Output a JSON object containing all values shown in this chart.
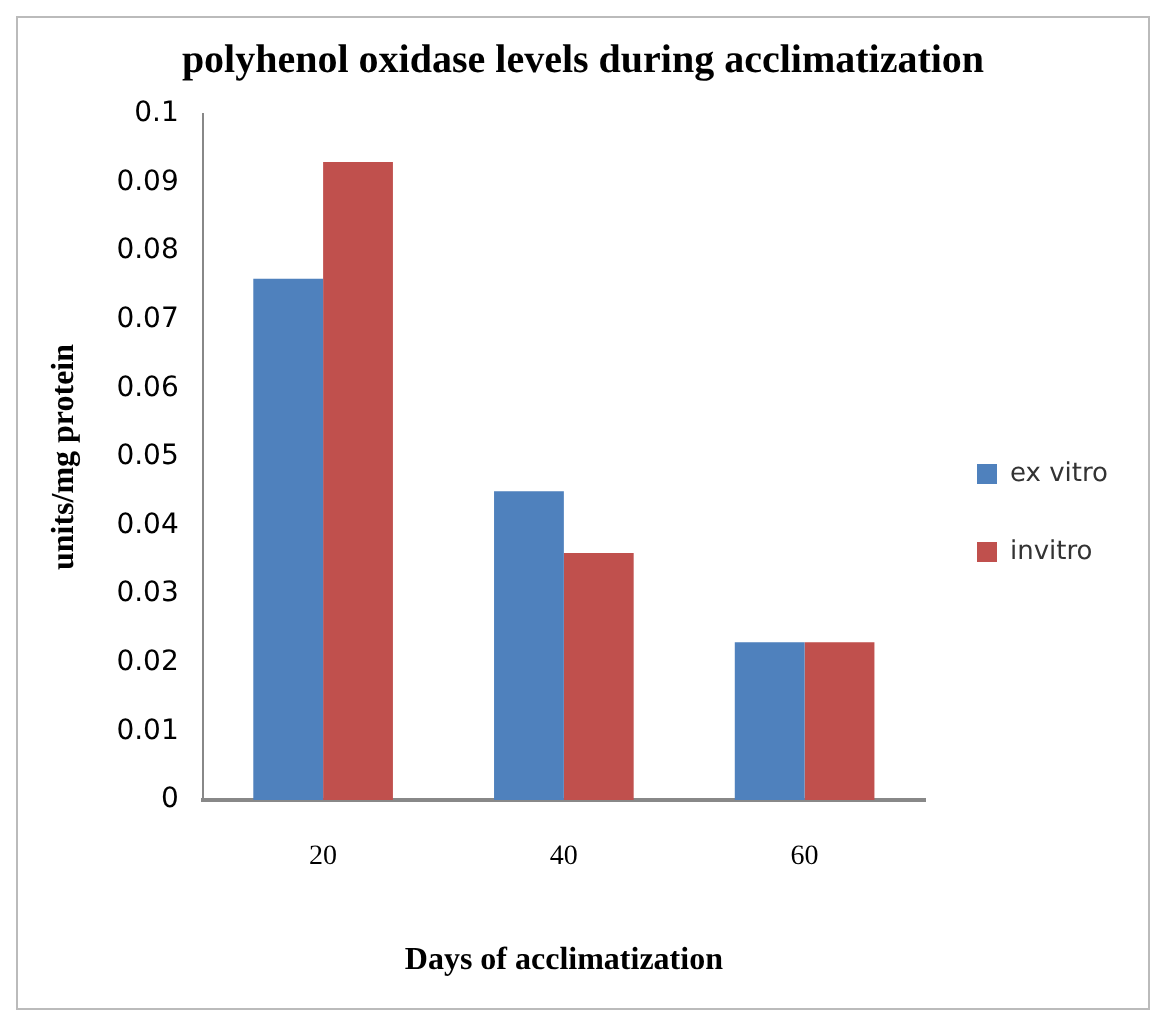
{
  "chart_data": {
    "type": "bar",
    "title": "polyhenol oxidase levels during acclimatization",
    "xlabel": "Days of acclimatization",
    "ylabel": "units/mg protein",
    "categories": [
      "20",
      "40",
      "60"
    ],
    "series": [
      {
        "name": "ex vitro",
        "color": "#4f81bd",
        "values": [
          0.076,
          0.045,
          0.023
        ]
      },
      {
        "name": "invitro",
        "color": "#c0504d",
        "values": [
          0.093,
          0.036,
          0.023
        ]
      }
    ],
    "ylim": [
      0,
      0.1
    ],
    "yticks": [
      0,
      0.01,
      0.02,
      0.03,
      0.04,
      0.05,
      0.06,
      0.07,
      0.08,
      0.09,
      0.1
    ],
    "grid": false,
    "legend": "right"
  }
}
